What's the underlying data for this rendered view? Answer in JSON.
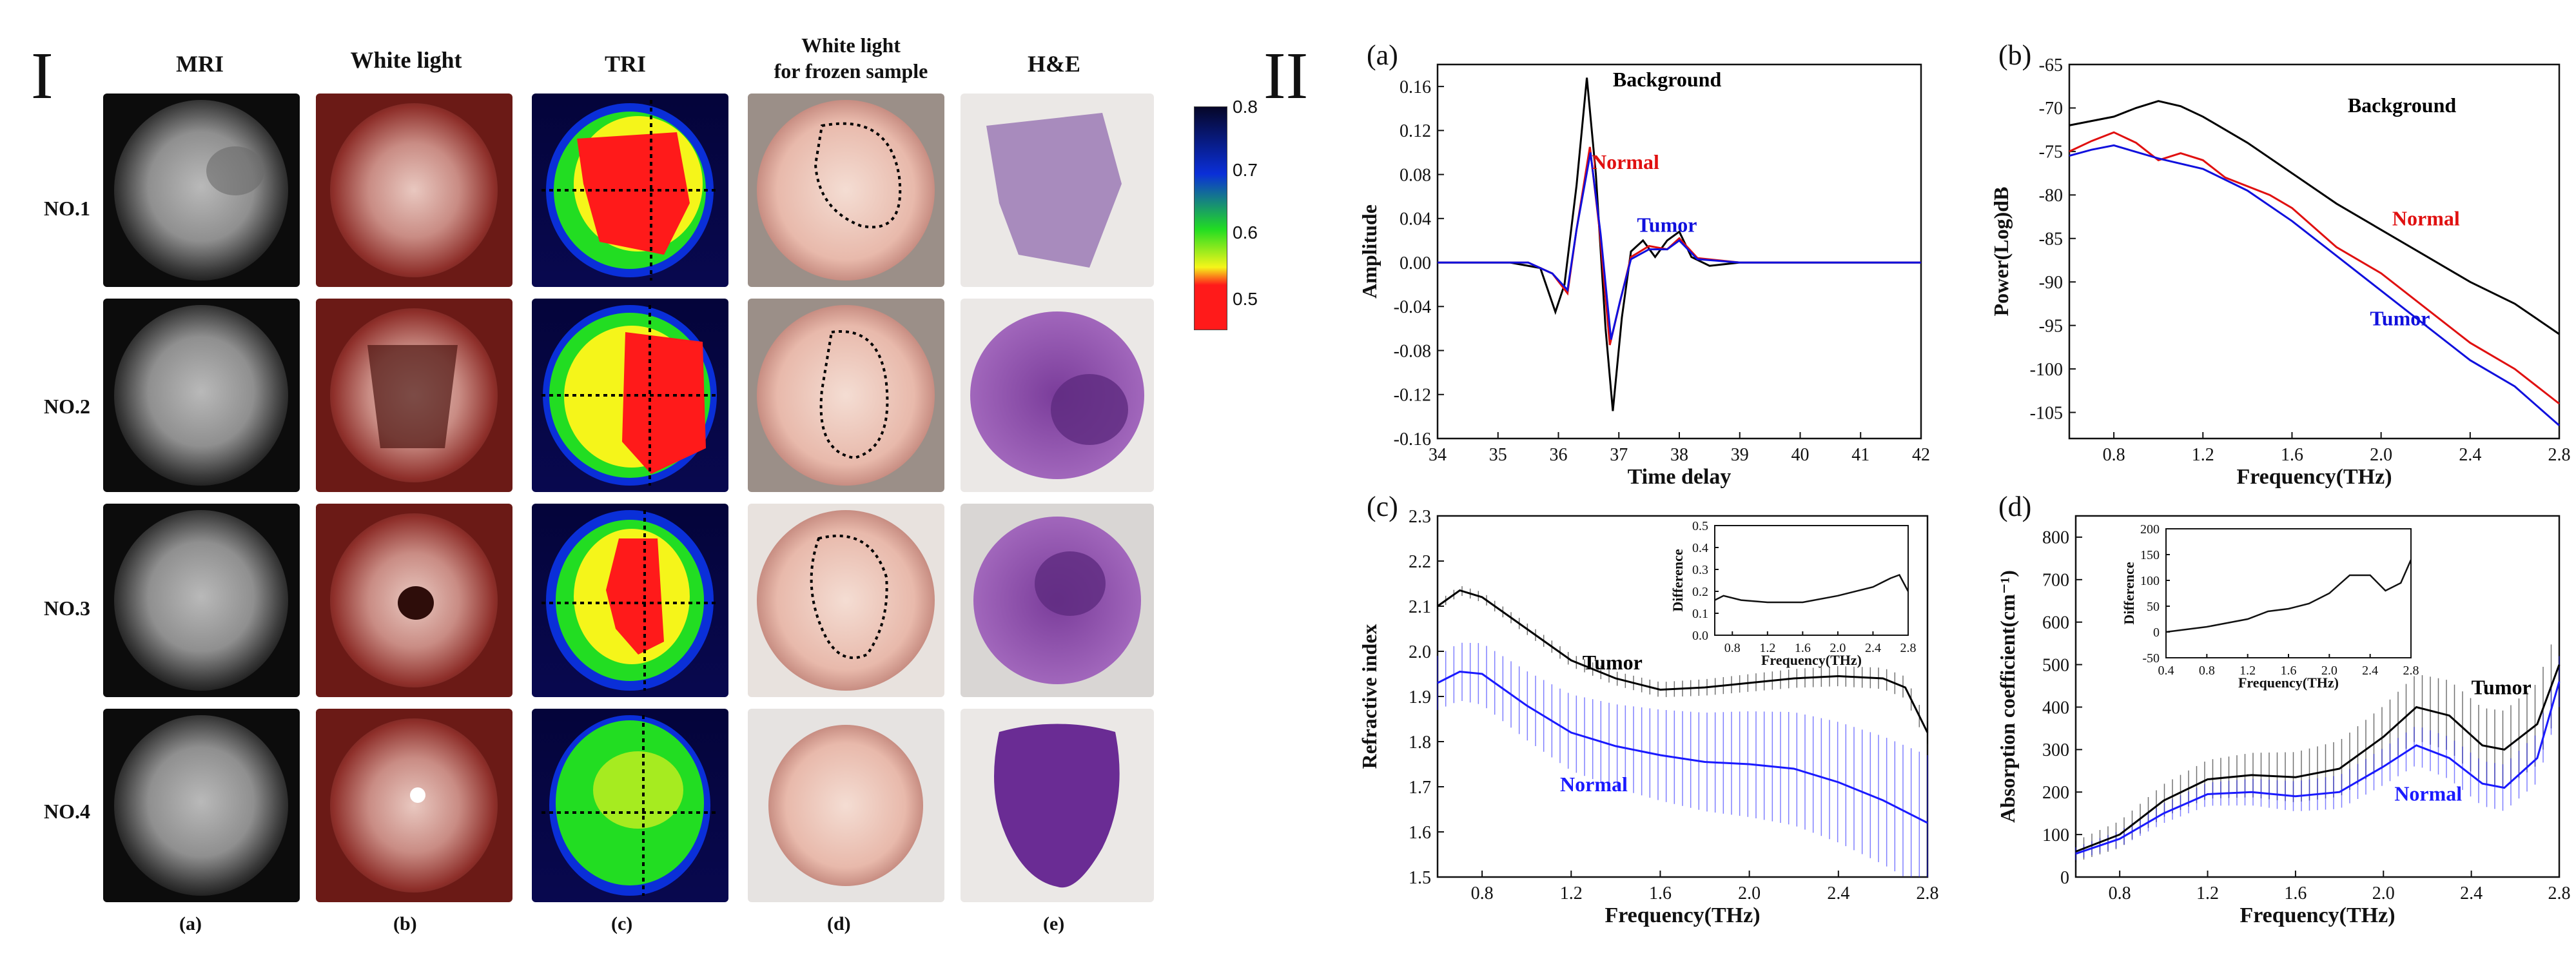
{
  "panel_I": {
    "roman": "I",
    "col_headers": [
      "MRI",
      "White light",
      "TRI",
      "White light\nfor frozen sample",
      "H&E"
    ],
    "row_labels": [
      "NO.1",
      "NO.2",
      "NO.3",
      "NO.4"
    ],
    "col_letters": [
      "(a)",
      "(b)",
      "(c)",
      "(d)",
      "(e)"
    ],
    "colorbar": {
      "ticks": [
        "0.8",
        "0.7",
        "0.6",
        "0.5"
      ]
    },
    "colors": {
      "tri_red": "#ff1a1a",
      "tri_yellow": "#f5f51a",
      "tri_green": "#22dd22",
      "tri_blue": "#0a2fd8",
      "he_purple": "#8a4aa6"
    }
  },
  "panel_II": {
    "roman": "II"
  },
  "chart_data": [
    {
      "id": "a",
      "letter": "(a)",
      "type": "line",
      "xlabel": "Time  delay",
      "ylabel": "Amplitude",
      "xlim": [
        34,
        42
      ],
      "ylim": [
        -0.16,
        0.18
      ],
      "xticks": [
        34,
        35,
        36,
        37,
        38,
        39,
        40,
        41,
        42
      ],
      "yticks": [
        -0.16,
        -0.12,
        -0.08,
        -0.04,
        0.0,
        0.04,
        0.08,
        0.12,
        0.16
      ],
      "ytick_labels": [
        "-0.16",
        "-0.12",
        "-0.08",
        "-0.04",
        "0.00",
        "0.04",
        "0.08",
        "0.12",
        "0.16"
      ],
      "series": [
        {
          "name": "Background",
          "color": "#000000",
          "points": [
            [
              34,
              0
            ],
            [
              35.2,
              0
            ],
            [
              35.7,
              -0.005
            ],
            [
              35.95,
              -0.045
            ],
            [
              36.1,
              -0.02
            ],
            [
              36.3,
              0.07
            ],
            [
              36.47,
              0.168
            ],
            [
              36.62,
              0.08
            ],
            [
              36.78,
              -0.06
            ],
            [
              36.9,
              -0.135
            ],
            [
              37.05,
              -0.05
            ],
            [
              37.2,
              0.01
            ],
            [
              37.4,
              0.02
            ],
            [
              37.6,
              0.005
            ],
            [
              37.8,
              0.02
            ],
            [
              38.0,
              0.028
            ],
            [
              38.2,
              0.005
            ],
            [
              38.5,
              -0.003
            ],
            [
              39,
              0
            ],
            [
              42,
              0
            ]
          ]
        },
        {
          "name": "Normal",
          "color": "#e01010",
          "points": [
            [
              34,
              0
            ],
            [
              35.5,
              0
            ],
            [
              35.9,
              -0.01
            ],
            [
              36.15,
              -0.028
            ],
            [
              36.3,
              0.03
            ],
            [
              36.52,
              0.105
            ],
            [
              36.68,
              0.03
            ],
            [
              36.85,
              -0.075
            ],
            [
              37.0,
              -0.04
            ],
            [
              37.2,
              0.005
            ],
            [
              37.5,
              0.015
            ],
            [
              37.8,
              0.012
            ],
            [
              38.0,
              0.022
            ],
            [
              38.3,
              0.004
            ],
            [
              39,
              0
            ],
            [
              42,
              0
            ]
          ]
        },
        {
          "name": "Tumor",
          "color": "#1010dd",
          "points": [
            [
              34,
              0
            ],
            [
              35.5,
              0
            ],
            [
              35.9,
              -0.01
            ],
            [
              36.15,
              -0.025
            ],
            [
              36.3,
              0.03
            ],
            [
              36.53,
              0.1
            ],
            [
              36.7,
              0.025
            ],
            [
              36.87,
              -0.07
            ],
            [
              37.02,
              -0.035
            ],
            [
              37.2,
              0.003
            ],
            [
              37.5,
              0.012
            ],
            [
              37.8,
              0.012
            ],
            [
              38.0,
              0.02
            ],
            [
              38.3,
              0.003
            ],
            [
              39,
              0
            ],
            [
              42,
              0
            ]
          ]
        }
      ],
      "annotations": [
        "Background",
        "Normal",
        "Tumor"
      ]
    },
    {
      "id": "b",
      "letter": "(b)",
      "type": "line",
      "xlabel": "Frequency(THz)",
      "ylabel": "Power(Log)dB",
      "xlim": [
        0.6,
        2.8
      ],
      "ylim": [
        -108,
        -65
      ],
      "xticks": [
        0.8,
        1.2,
        1.6,
        2.0,
        2.4,
        2.8
      ],
      "yticks": [
        -105,
        -100,
        -95,
        -90,
        -85,
        -80,
        -75,
        -70,
        -65
      ],
      "series": [
        {
          "name": "Background",
          "color": "#000000",
          "points": [
            [
              0.6,
              -72
            ],
            [
              0.8,
              -71
            ],
            [
              0.9,
              -70
            ],
            [
              1.0,
              -69.2
            ],
            [
              1.1,
              -69.8
            ],
            [
              1.2,
              -71
            ],
            [
              1.4,
              -74
            ],
            [
              1.6,
              -77.5
            ],
            [
              1.8,
              -81
            ],
            [
              2.0,
              -84
            ],
            [
              2.2,
              -87
            ],
            [
              2.4,
              -90
            ],
            [
              2.6,
              -92.5
            ],
            [
              2.8,
              -96
            ]
          ]
        },
        {
          "name": "Normal",
          "color": "#e01010",
          "points": [
            [
              0.6,
              -75
            ],
            [
              0.7,
              -73.8
            ],
            [
              0.8,
              -72.8
            ],
            [
              0.9,
              -74
            ],
            [
              1.0,
              -76
            ],
            [
              1.1,
              -75.2
            ],
            [
              1.2,
              -76
            ],
            [
              1.3,
              -78
            ],
            [
              1.5,
              -80
            ],
            [
              1.6,
              -81.5
            ],
            [
              1.8,
              -86
            ],
            [
              2.0,
              -89
            ],
            [
              2.2,
              -93
            ],
            [
              2.4,
              -97
            ],
            [
              2.6,
              -100
            ],
            [
              2.8,
              -104
            ]
          ]
        },
        {
          "name": "Tumor",
          "color": "#1010dd",
          "points": [
            [
              0.6,
              -75.5
            ],
            [
              0.7,
              -74.8
            ],
            [
              0.8,
              -74.3
            ],
            [
              1.0,
              -75.8
            ],
            [
              1.2,
              -77
            ],
            [
              1.4,
              -79.5
            ],
            [
              1.6,
              -83
            ],
            [
              1.8,
              -87
            ],
            [
              2.0,
              -91
            ],
            [
              2.2,
              -95
            ],
            [
              2.4,
              -99
            ],
            [
              2.6,
              -102
            ],
            [
              2.8,
              -106.5
            ]
          ]
        }
      ],
      "annotations": [
        "Background",
        "Normal",
        "Tumor"
      ]
    },
    {
      "id": "c",
      "letter": "(c)",
      "type": "line",
      "xlabel": "Frequency(THz)",
      "ylabel": "Refractive index",
      "xlim": [
        0.6,
        2.8
      ],
      "ylim": [
        1.5,
        2.3
      ],
      "xticks": [
        0.8,
        1.2,
        1.6,
        2.0,
        2.4,
        2.8
      ],
      "yticks": [
        1.5,
        1.6,
        1.7,
        1.8,
        1.9,
        2.0,
        2.1,
        2.2,
        2.3
      ],
      "series": [
        {
          "name": "Tumor",
          "color": "#000000",
          "err": 0.01,
          "points": [
            [
              0.6,
              2.1
            ],
            [
              0.7,
              2.135
            ],
            [
              0.8,
              2.12
            ],
            [
              1.0,
              2.05
            ],
            [
              1.2,
              1.98
            ],
            [
              1.4,
              1.94
            ],
            [
              1.6,
              1.915
            ],
            [
              1.8,
              1.92
            ],
            [
              2.0,
              1.93
            ],
            [
              2.2,
              1.94
            ],
            [
              2.4,
              1.945
            ],
            [
              2.6,
              1.94
            ],
            [
              2.7,
              1.92
            ],
            [
              2.8,
              1.82
            ]
          ]
        },
        {
          "name": "Normal",
          "color": "#1a1aff",
          "err": 0.06,
          "points": [
            [
              0.6,
              1.93
            ],
            [
              0.7,
              1.955
            ],
            [
              0.8,
              1.95
            ],
            [
              1.0,
              1.88
            ],
            [
              1.2,
              1.82
            ],
            [
              1.4,
              1.79
            ],
            [
              1.6,
              1.77
            ],
            [
              1.8,
              1.755
            ],
            [
              2.0,
              1.75
            ],
            [
              2.2,
              1.74
            ],
            [
              2.4,
              1.71
            ],
            [
              2.6,
              1.67
            ],
            [
              2.8,
              1.62
            ]
          ]
        }
      ],
      "annotations": [
        "Tumor",
        "Normal"
      ],
      "inset": {
        "xlabel": "Frequency(THz)",
        "ylabel": "Difference",
        "xlim": [
          0.6,
          2.8
        ],
        "ylim": [
          0,
          0.5
        ],
        "xticks": [
          0.8,
          1.2,
          1.6,
          2.0,
          2.4,
          2.8
        ],
        "yticks": [
          0.0,
          0.1,
          0.2,
          0.3,
          0.4,
          0.5
        ],
        "points": [
          [
            0.6,
            0.16
          ],
          [
            0.7,
            0.18
          ],
          [
            0.9,
            0.16
          ],
          [
            1.2,
            0.15
          ],
          [
            1.6,
            0.15
          ],
          [
            2.0,
            0.18
          ],
          [
            2.4,
            0.22
          ],
          [
            2.6,
            0.26
          ],
          [
            2.7,
            0.275
          ],
          [
            2.8,
            0.2
          ]
        ]
      }
    },
    {
      "id": "d",
      "letter": "(d)",
      "type": "line",
      "xlabel": "Frequency(THz)",
      "ylabel": "Absorption coefficient(cm⁻¹)",
      "xlim": [
        0.6,
        2.8
      ],
      "ylim": [
        0,
        850
      ],
      "xticks": [
        0.8,
        1.2,
        1.6,
        2.0,
        2.4,
        2.8
      ],
      "yticks": [
        0,
        100,
        200,
        300,
        400,
        500,
        600,
        700,
        800
      ],
      "series": [
        {
          "name": "Tumor",
          "color": "#000000",
          "err": 25,
          "points": [
            [
              0.6,
              60
            ],
            [
              0.8,
              100
            ],
            [
              1.0,
              180
            ],
            [
              1.2,
              230
            ],
            [
              1.4,
              240
            ],
            [
              1.6,
              235
            ],
            [
              1.8,
              255
            ],
            [
              2.0,
              330
            ],
            [
              2.15,
              400
            ],
            [
              2.3,
              380
            ],
            [
              2.45,
              310
            ],
            [
              2.55,
              300
            ],
            [
              2.7,
              360
            ],
            [
              2.8,
              500
            ]
          ]
        },
        {
          "name": "Normal",
          "color": "#1a1aff",
          "err": 15,
          "points": [
            [
              0.6,
              55
            ],
            [
              0.8,
              90
            ],
            [
              1.0,
              150
            ],
            [
              1.2,
              195
            ],
            [
              1.4,
              200
            ],
            [
              1.6,
              190
            ],
            [
              1.8,
              200
            ],
            [
              2.0,
              260
            ],
            [
              2.15,
              310
            ],
            [
              2.3,
              280
            ],
            [
              2.45,
              220
            ],
            [
              2.55,
              210
            ],
            [
              2.7,
              280
            ],
            [
              2.8,
              460
            ]
          ]
        }
      ],
      "annotations": [
        "Tumor",
        "Normal"
      ],
      "inset": {
        "xlabel": "Frequency(THz)",
        "ylabel": "Difference",
        "xlim": [
          0.4,
          2.8
        ],
        "ylim": [
          -50,
          200
        ],
        "xticks": [
          0.4,
          0.8,
          1.2,
          1.6,
          2.0,
          2.4,
          2.8
        ],
        "yticks": [
          -50,
          0,
          50,
          100,
          150,
          200
        ],
        "points": [
          [
            0.4,
            0
          ],
          [
            0.8,
            10
          ],
          [
            1.2,
            25
          ],
          [
            1.4,
            40
          ],
          [
            1.6,
            45
          ],
          [
            1.8,
            55
          ],
          [
            2.0,
            75
          ],
          [
            2.2,
            110
          ],
          [
            2.4,
            110
          ],
          [
            2.55,
            80
          ],
          [
            2.7,
            95
          ],
          [
            2.8,
            140
          ]
        ]
      }
    }
  ]
}
